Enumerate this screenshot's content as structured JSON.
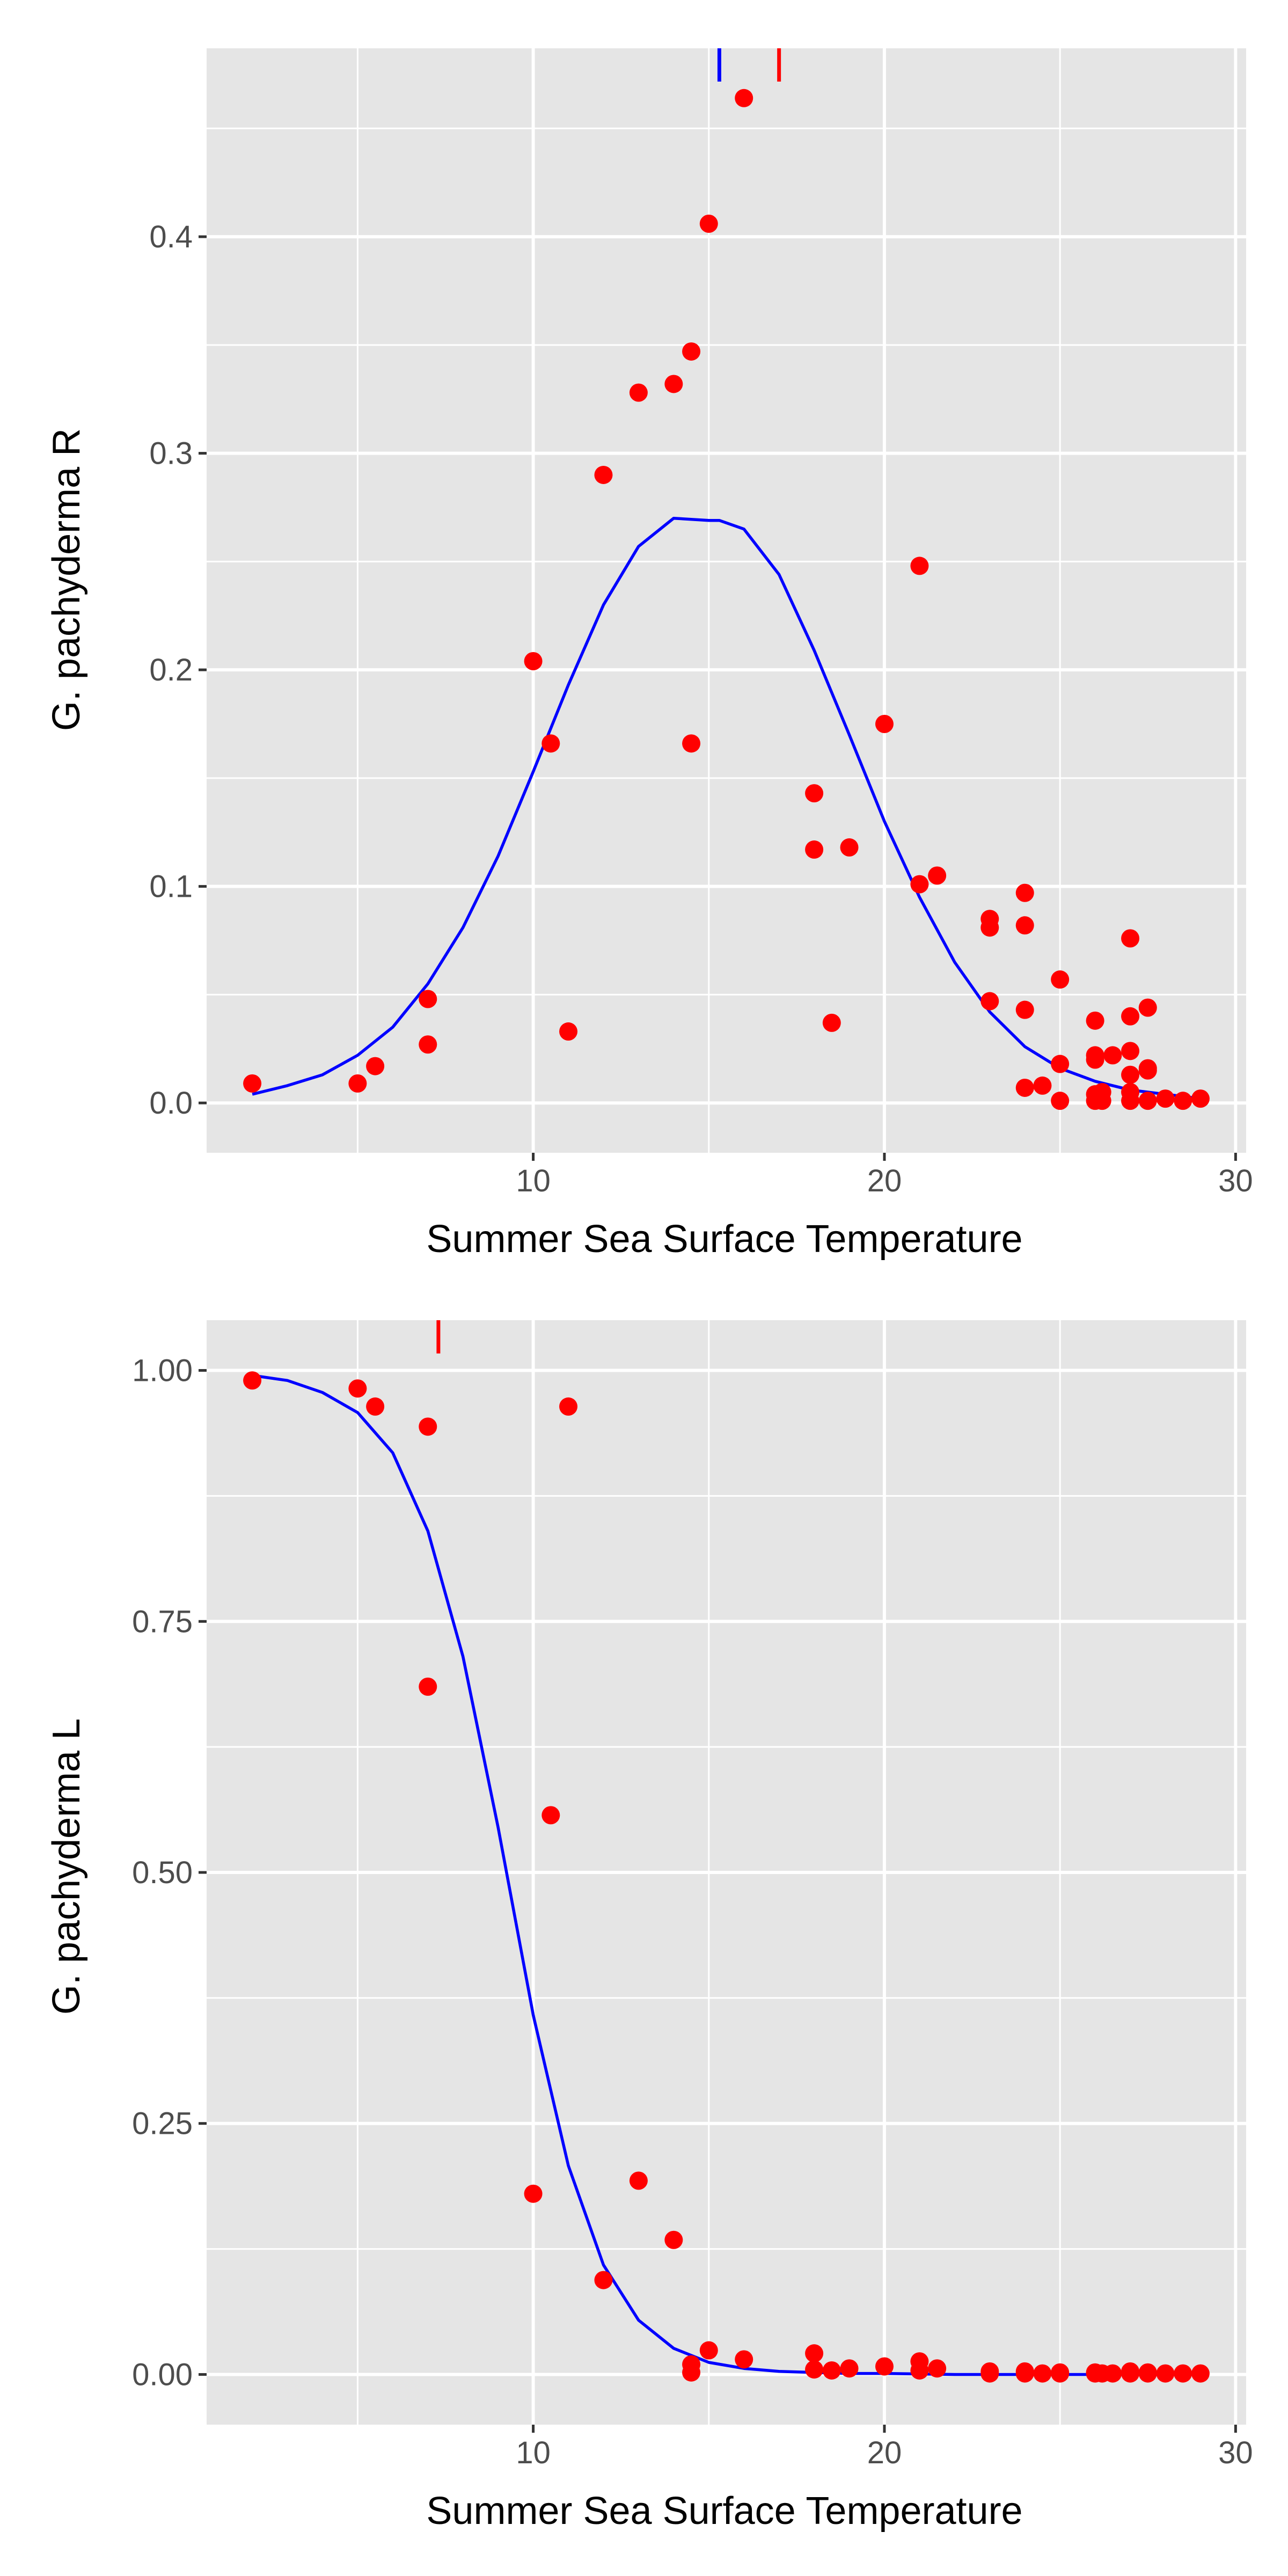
{
  "colors": {
    "panel_background": "#e5e5e5",
    "grid": "#ffffff",
    "points": "#ff0000",
    "curve": "#0000ff",
    "text": "#000000",
    "tick_text": "#4d4d4d"
  },
  "chart_data": [
    {
      "type": "scatter",
      "title": "",
      "xlabel": "Summer Sea Surface Temperature",
      "ylabel": "G. pachyderma R",
      "xlim": [
        0.7,
        30.3
      ],
      "ylim": [
        -0.023,
        0.487
      ],
      "x_ticks": [
        10,
        20,
        30
      ],
      "x_tick_labels": [
        "10",
        "20",
        "30"
      ],
      "y_ticks": [
        0.0,
        0.1,
        0.2,
        0.3,
        0.4
      ],
      "y_tick_labels": [
        "0.0",
        "0.1",
        "0.2",
        "0.3",
        "0.4"
      ],
      "grid": true,
      "series": [
        {
          "kind": "points",
          "color": "#ff0000",
          "x": [
            2.0,
            5.0,
            5.5,
            7.0,
            7.0,
            10.0,
            10.5,
            11.0,
            12.0,
            13.0,
            14.0,
            14.5,
            14.5,
            15.0,
            16.0,
            18.0,
            18.0,
            18.5,
            19.0,
            20.0,
            21.0,
            21.0,
            21.5,
            23.0,
            23.0,
            23.0,
            24.0,
            24.0,
            24.0,
            24.0,
            24.5,
            25.0,
            25.0,
            25.0,
            26.0,
            26.0,
            26.0,
            26.0,
            26.0,
            26.2,
            26.2,
            26.5,
            27.0,
            27.0,
            27.0,
            27.0,
            27.0,
            27.0,
            27.5,
            27.5,
            27.5,
            27.5,
            28.0,
            28.5,
            29.0
          ],
          "y": [
            0.009,
            0.009,
            0.017,
            0.048,
            0.027,
            0.204,
            0.166,
            0.033,
            0.29,
            0.328,
            0.332,
            0.347,
            0.166,
            0.406,
            0.464,
            0.143,
            0.117,
            0.037,
            0.118,
            0.175,
            0.248,
            0.101,
            0.105,
            0.085,
            0.081,
            0.047,
            0.097,
            0.082,
            0.043,
            0.007,
            0.008,
            0.057,
            0.018,
            0.001,
            0.038,
            0.022,
            0.02,
            0.004,
            0.001,
            0.005,
            0.001,
            0.022,
            0.076,
            0.04,
            0.024,
            0.013,
            0.005,
            0.001,
            0.044,
            0.015,
            0.016,
            0.001,
            0.002,
            0.001,
            0.002
          ]
        },
        {
          "kind": "line",
          "color": "#0000ff",
          "x": [
            2.0,
            3.0,
            4.0,
            5.0,
            6.0,
            7.0,
            8.0,
            9.0,
            10.0,
            11.0,
            12.0,
            13.0,
            14.0,
            15.0,
            15.3,
            16.0,
            17.0,
            18.0,
            19.0,
            20.0,
            21.0,
            22.0,
            23.0,
            24.0,
            25.0,
            26.0,
            27.0,
            28.0,
            29.0
          ],
          "y": [
            0.004,
            0.008,
            0.013,
            0.022,
            0.035,
            0.055,
            0.081,
            0.114,
            0.153,
            0.193,
            0.23,
            0.257,
            0.27,
            0.269,
            0.269,
            0.265,
            0.244,
            0.209,
            0.17,
            0.13,
            0.095,
            0.065,
            0.042,
            0.026,
            0.016,
            0.01,
            0.006,
            0.004,
            0.002
          ]
        }
      ],
      "rug": [
        {
          "x": 15.3,
          "color": "#0000ff"
        },
        {
          "x": 17.0,
          "color": "#ff0000"
        }
      ]
    },
    {
      "type": "scatter",
      "title": "",
      "xlabel": "Summer Sea Surface Temperature",
      "ylabel": "G. pachyderma L",
      "xlim": [
        0.7,
        30.3
      ],
      "ylim": [
        -0.05,
        1.05
      ],
      "x_ticks": [
        10,
        20,
        30
      ],
      "x_tick_labels": [
        "10",
        "20",
        "30"
      ],
      "y_ticks": [
        0.0,
        0.25,
        0.5,
        0.75,
        1.0
      ],
      "y_tick_labels": [
        "0.00",
        "0.25",
        "0.50",
        "0.75",
        "1.00"
      ],
      "grid": true,
      "series": [
        {
          "kind": "points",
          "color": "#ff0000",
          "x": [
            2.0,
            5.0,
            5.5,
            7.0,
            7.0,
            10.0,
            10.5,
            11.0,
            12.0,
            13.0,
            14.0,
            14.5,
            14.5,
            15.0,
            16.0,
            18.0,
            18.0,
            18.5,
            19.0,
            20.0,
            21.0,
            21.0,
            21.5,
            23.0,
            23.0,
            24.0,
            24.0,
            24.5,
            25.0,
            25.0,
            26.0,
            26.0,
            26.2,
            26.5,
            27.0,
            27.0,
            27.5,
            27.5,
            28.0,
            28.5,
            29.0
          ],
          "y": [
            0.99,
            0.982,
            0.964,
            0.944,
            0.685,
            0.18,
            0.557,
            0.964,
            0.094,
            0.193,
            0.134,
            0.01,
            0.002,
            0.024,
            0.015,
            0.021,
            0.005,
            0.004,
            0.006,
            0.008,
            0.013,
            0.004,
            0.006,
            0.003,
            0.001,
            0.003,
            0.001,
            0.001,
            0.002,
            0.001,
            0.002,
            0.001,
            0.001,
            0.001,
            0.003,
            0.001,
            0.002,
            0.001,
            0.001,
            0.001,
            0.001
          ]
        },
        {
          "kind": "line",
          "color": "#0000ff",
          "x": [
            2.0,
            3.0,
            4.0,
            5.0,
            6.0,
            7.0,
            8.0,
            9.0,
            10.0,
            11.0,
            12.0,
            13.0,
            14.0,
            15.0,
            16.0,
            17.0,
            18.0,
            19.0,
            20.0,
            22.0,
            24.0,
            26.0,
            29.0
          ],
          "y": [
            0.995,
            0.99,
            0.978,
            0.958,
            0.918,
            0.84,
            0.715,
            0.545,
            0.358,
            0.208,
            0.109,
            0.054,
            0.026,
            0.012,
            0.006,
            0.003,
            0.002,
            0.001,
            0.001,
            0.0,
            0.0,
            0.0,
            0.0
          ]
        }
      ],
      "rug": [
        {
          "x": 7.3,
          "color": "#ff0000"
        }
      ]
    }
  ]
}
